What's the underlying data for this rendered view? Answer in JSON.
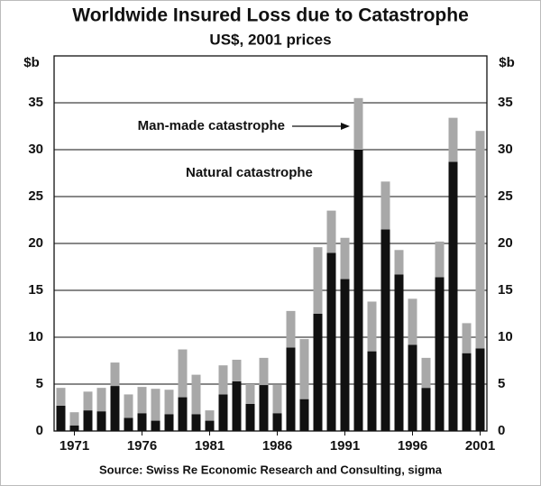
{
  "chart_data": {
    "type": "stacked-bar",
    "title": "Worldwide Insured Loss due to Catastrophe",
    "subtitle": "US$, 2001 prices",
    "y_unit": "$b",
    "source": "Source: Swiss Re Economic Research and Consulting, sigma",
    "categories": [
      null,
      "1971",
      null,
      null,
      null,
      null,
      "1976",
      null,
      null,
      null,
      null,
      "1981",
      null,
      null,
      null,
      null,
      "1986",
      null,
      null,
      null,
      null,
      "1991",
      null,
      null,
      null,
      null,
      "1996",
      null,
      null,
      null,
      null,
      "2001"
    ],
    "series": [
      {
        "name": "Natural catastrophe",
        "color": "#111111",
        "values": [
          2.7,
          0.6,
          2.2,
          2.1,
          4.8,
          1.4,
          1.9,
          1.1,
          1.8,
          3.6,
          1.8,
          1.1,
          3.9,
          5.3,
          2.9,
          4.9,
          1.9,
          8.9,
          3.4,
          12.5,
          19.0,
          16.2,
          30.0,
          8.5,
          21.5,
          16.7,
          9.2,
          4.6,
          16.4,
          28.7,
          8.3,
          8.8
        ]
      },
      {
        "name": "Man-made catastrophe",
        "color": "#a8a8a8",
        "values": [
          1.9,
          1.4,
          2.0,
          2.5,
          2.5,
          2.5,
          2.8,
          3.4,
          2.6,
          5.1,
          4.2,
          1.1,
          3.1,
          2.3,
          2.1,
          2.9,
          3.0,
          3.9,
          6.4,
          7.1,
          4.5,
          4.4,
          5.5,
          5.3,
          5.1,
          2.6,
          4.9,
          3.2,
          3.8,
          4.7,
          3.2,
          23.2
        ]
      }
    ],
    "ylim": [
      0,
      40
    ],
    "yticks": [
      0,
      5,
      10,
      15,
      20,
      25,
      30,
      35
    ],
    "grid": true
  }
}
